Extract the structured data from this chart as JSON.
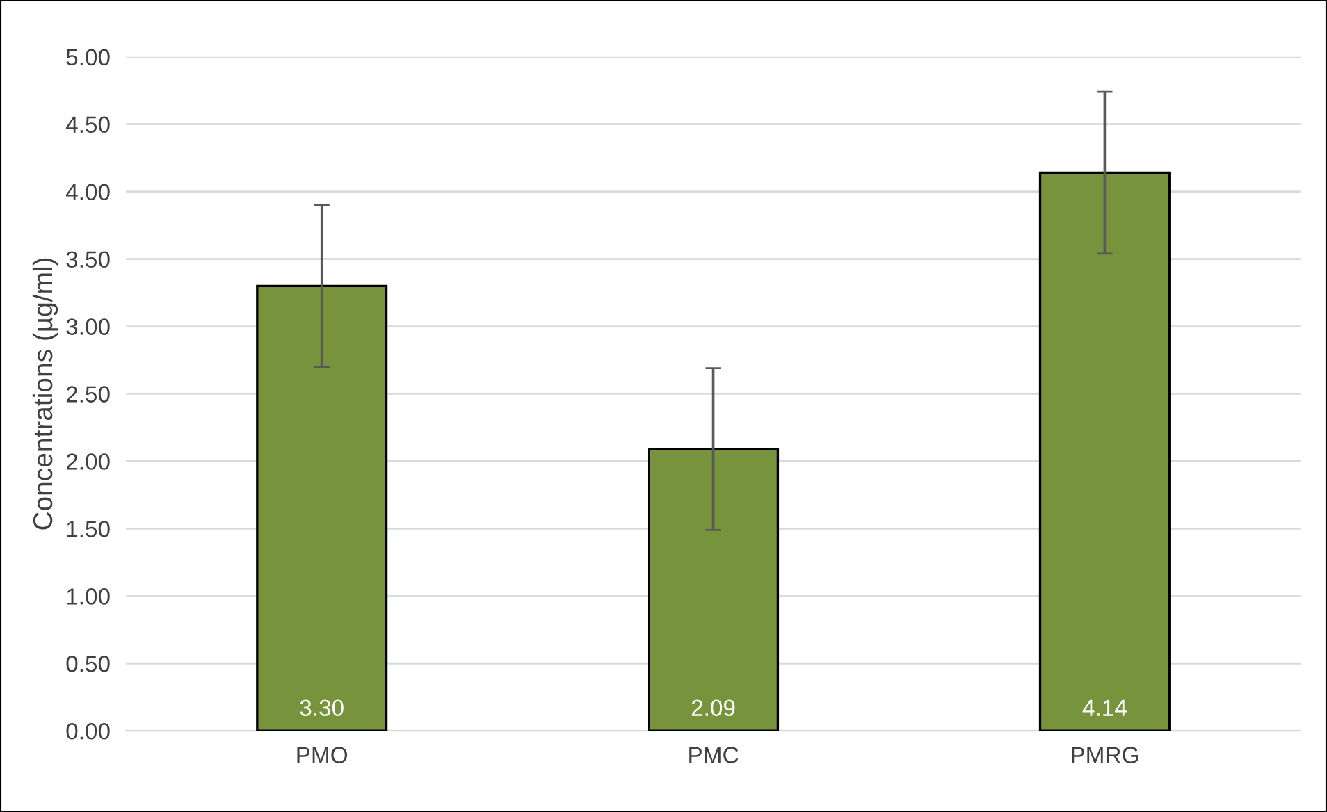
{
  "chart_data": {
    "type": "bar",
    "ylabel": "Concentrations (µg/ml)",
    "categories": [
      "PMO",
      "PMC",
      "PMRG"
    ],
    "values": [
      3.3,
      2.09,
      4.14
    ],
    "color": "#77933c",
    "errors": [
      0.6,
      0.6,
      0.6
    ],
    "value_labels": [
      "3.30",
      "2.09",
      "4.14"
    ],
    "ylim": [
      0,
      5
    ],
    "yticks": [
      {
        "value": 0,
        "label": "0.00"
      },
      {
        "value": 0.5,
        "label": "0.50"
      },
      {
        "value": 1,
        "label": "1.00"
      },
      {
        "value": 1.5,
        "label": "1.50"
      },
      {
        "value": 2,
        "label": "2.00"
      },
      {
        "value": 2.5,
        "label": "2.50"
      },
      {
        "value": 3,
        "label": "3.00"
      },
      {
        "value": 3.5,
        "label": "3.50"
      },
      {
        "value": 4,
        "label": "4.00"
      },
      {
        "value": 4.5,
        "label": "4.50"
      },
      {
        "value": 5,
        "label": "5.00"
      }
    ],
    "grid": "y"
  }
}
